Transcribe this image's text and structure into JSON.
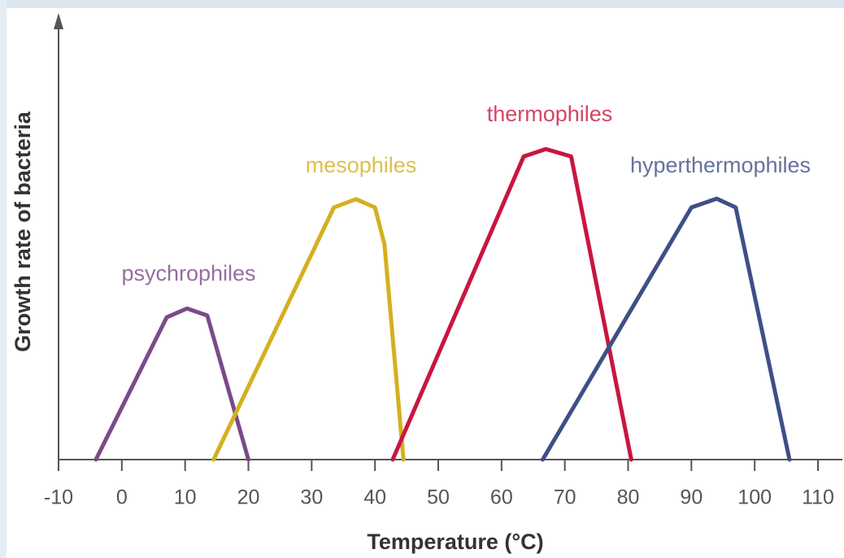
{
  "chart_data": {
    "type": "line",
    "xlabel": "Temperature (°C)",
    "ylabel": "Growth rate of bacteria",
    "xlim": [
      -10,
      110
    ],
    "xticks": [
      -10,
      0,
      10,
      20,
      30,
      40,
      50,
      60,
      70,
      80,
      90,
      100,
      110
    ],
    "ylim": [
      0,
      100
    ],
    "series": [
      {
        "name": "psychrophiles",
        "color": "#7b4a8a",
        "x": [
          -4.1,
          7.1,
          10.3,
          13.5,
          20
        ],
        "values": [
          0,
          32.4,
          34.4,
          32.8,
          0
        ]
      },
      {
        "name": "mesophiles",
        "color": "#d4b020",
        "x": [
          14.5,
          33.5,
          37,
          40,
          41.5,
          44.5
        ],
        "values": [
          0,
          57.4,
          59.3,
          57.4,
          49,
          0
        ]
      },
      {
        "name": "thermophiles",
        "color": "#c8163f",
        "x": [
          42.8,
          63.5,
          67,
          71,
          80.5
        ],
        "values": [
          0,
          69,
          70.7,
          69,
          0
        ]
      },
      {
        "name": "hyperthermophiles",
        "color": "#3f4f86",
        "x": [
          66.5,
          90,
          94,
          97,
          105.5
        ],
        "values": [
          0,
          57.4,
          59.4,
          57.4,
          0
        ]
      }
    ]
  }
}
